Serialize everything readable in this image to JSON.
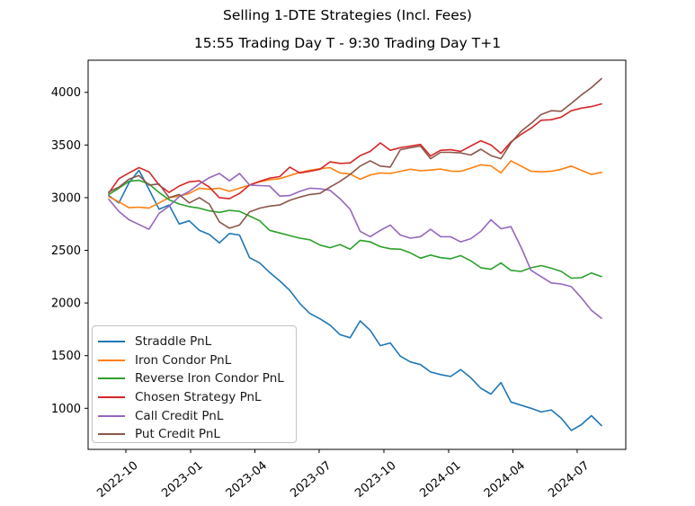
{
  "chart_data": {
    "type": "line",
    "title": "Selling 1-DTE Strategies (Incl. Fees)",
    "subtitle": "15:55 Trading Day T - 9:30 Trading Day T+1",
    "grid": false,
    "legend_position": "lower left",
    "n_points": 50,
    "x_tick_labels": [
      "2022-10",
      "2023-01",
      "2023-04",
      "2023-07",
      "2023-10",
      "2024-01",
      "2024-04",
      "2024-07"
    ],
    "x_tick_positions_index": [
      1.7,
      8.14,
      14.53,
      20.92,
      27.36,
      33.8,
      40.19,
      46.58
    ],
    "x_range": [
      "2022-09",
      "2024-08"
    ],
    "y_ticks": [
      1000,
      1500,
      2000,
      2500,
      3000,
      3500,
      4000
    ],
    "ylim": [
      610,
      4305
    ],
    "series": [
      {
        "name": "Straddle PnL",
        "color": "#1f77b4",
        "values": [
          3020,
          2950,
          3140,
          3260,
          3080,
          2890,
          2930,
          2750,
          2780,
          2690,
          2650,
          2570,
          2660,
          2645,
          2430,
          2380,
          2290,
          2210,
          2120,
          1995,
          1900,
          1850,
          1790,
          1700,
          1670,
          1830,
          1740,
          1595,
          1620,
          1495,
          1440,
          1415,
          1345,
          1320,
          1302,
          1368,
          1290,
          1190,
          1135,
          1245,
          1060,
          1030,
          1000,
          965,
          985,
          905,
          790,
          845,
          930,
          835
        ]
      },
      {
        "name": "Iron Condor PnL",
        "color": "#ff7f0e",
        "values": [
          3010,
          2960,
          2905,
          2910,
          2900,
          2950,
          3000,
          3015,
          3040,
          3090,
          3080,
          3090,
          3060,
          3090,
          3120,
          3150,
          3170,
          3180,
          3210,
          3240,
          3260,
          3275,
          3285,
          3235,
          3225,
          3175,
          3215,
          3235,
          3230,
          3250,
          3270,
          3255,
          3262,
          3272,
          3252,
          3250,
          3280,
          3312,
          3302,
          3235,
          3350,
          3300,
          3250,
          3245,
          3250,
          3270,
          3300,
          3260,
          3220,
          3240
        ]
      },
      {
        "name": "Reverse Iron Condor PnL",
        "color": "#2ca02c",
        "values": [
          3030,
          3090,
          3155,
          3165,
          3130,
          3050,
          2980,
          2940,
          2915,
          2900,
          2875,
          2860,
          2880,
          2870,
          2825,
          2780,
          2690,
          2665,
          2640,
          2615,
          2600,
          2550,
          2525,
          2555,
          2510,
          2595,
          2580,
          2535,
          2515,
          2510,
          2475,
          2425,
          2455,
          2430,
          2420,
          2450,
          2400,
          2335,
          2320,
          2380,
          2310,
          2300,
          2335,
          2355,
          2330,
          2300,
          2236,
          2240,
          2285,
          2250
        ]
      },
      {
        "name": "Chosen Strategy PnL",
        "color": "#d62728",
        "values": [
          3045,
          3180,
          3235,
          3285,
          3245,
          3120,
          3050,
          3110,
          3150,
          3160,
          3100,
          3000,
          2990,
          3040,
          3120,
          3155,
          3185,
          3200,
          3290,
          3235,
          3250,
          3270,
          3340,
          3325,
          3330,
          3400,
          3440,
          3520,
          3450,
          3475,
          3490,
          3505,
          3395,
          3450,
          3455,
          3440,
          3490,
          3540,
          3500,
          3420,
          3530,
          3600,
          3660,
          3735,
          3740,
          3765,
          3825,
          3850,
          3865,
          3890
        ]
      },
      {
        "name": "Call Credit PnL",
        "color": "#9467bd",
        "values": [
          2985,
          2870,
          2790,
          2745,
          2700,
          2850,
          2920,
          3010,
          3060,
          3130,
          3190,
          3230,
          3160,
          3230,
          3120,
          3115,
          3110,
          3015,
          3020,
          3060,
          3090,
          3085,
          3070,
          2990,
          2890,
          2680,
          2630,
          2690,
          2740,
          2645,
          2615,
          2630,
          2700,
          2630,
          2628,
          2580,
          2610,
          2680,
          2790,
          2705,
          2725,
          2530,
          2310,
          2250,
          2190,
          2180,
          2155,
          2050,
          1930,
          1855
        ]
      },
      {
        "name": "Put Credit PnL",
        "color": "#8c564b",
        "values": [
          3055,
          3100,
          3175,
          3210,
          3120,
          3130,
          3000,
          3030,
          2950,
          3000,
          2940,
          2770,
          2710,
          2740,
          2865,
          2900,
          2920,
          2930,
          2975,
          3005,
          3030,
          3040,
          3100,
          3155,
          3220,
          3300,
          3350,
          3300,
          3290,
          3455,
          3475,
          3490,
          3370,
          3430,
          3430,
          3425,
          3405,
          3460,
          3400,
          3370,
          3520,
          3630,
          3705,
          3790,
          3825,
          3820,
          3895,
          3975,
          4045,
          4130
        ]
      }
    ]
  }
}
